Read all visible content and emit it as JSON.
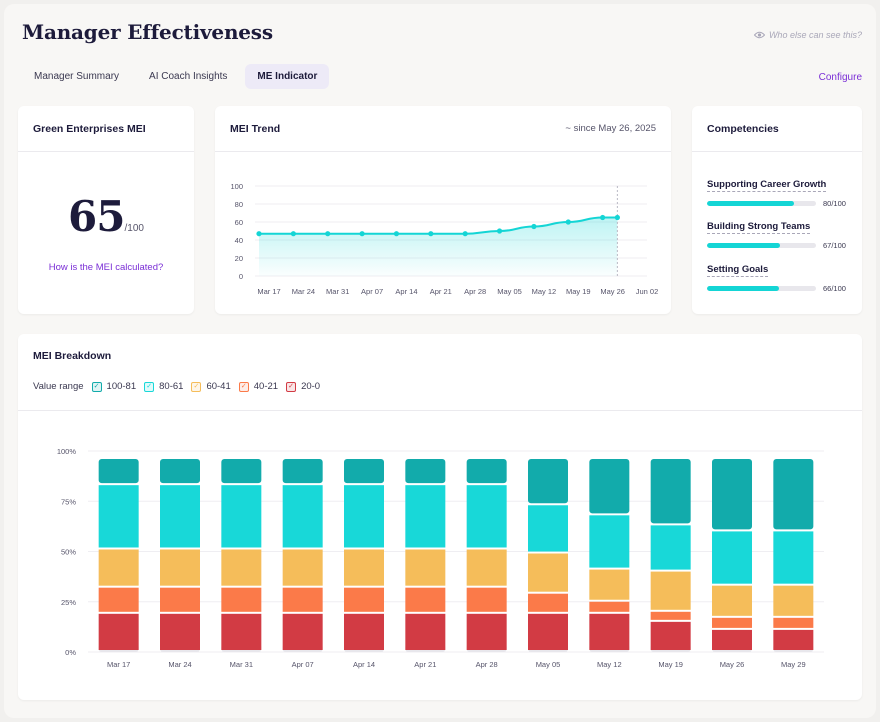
{
  "header": {
    "title": "Manager Effectiveness",
    "visibility_link": "Who else can see this?",
    "configure_label": "Configure"
  },
  "tabs": [
    {
      "label": "Manager Summary",
      "active": false
    },
    {
      "label": "AI Coach Insights",
      "active": false
    },
    {
      "label": "ME Indicator",
      "active": true
    }
  ],
  "mei_card": {
    "title": "Green Enterprises MEI",
    "score": "65",
    "score_denominator": "/100",
    "link_label": "How is the MEI calculated?"
  },
  "trend_card": {
    "title": "MEI Trend",
    "since_label": "~ since May 26, 2025",
    "chart_data": {
      "type": "area",
      "title": "MEI Trend",
      "x_ticks": [
        "Mar 17",
        "Mar 24",
        "Mar 31",
        "Apr 07",
        "Apr 14",
        "Apr 21",
        "Apr 28",
        "May 05",
        "May 12",
        "May 19",
        "May 26",
        "Jun 02"
      ],
      "y_ticks": [
        "100",
        "80",
        "60",
        "40",
        "20",
        "0"
      ],
      "ylim": [
        0,
        100
      ],
      "points": [
        {
          "x": "Mar 17",
          "y": 47
        },
        {
          "x": "Mar 24",
          "y": 47
        },
        {
          "x": "Mar 31",
          "y": 47
        },
        {
          "x": "Apr 07",
          "y": 47
        },
        {
          "x": "Apr 14",
          "y": 47
        },
        {
          "x": "Apr 21",
          "y": 47
        },
        {
          "x": "Apr 28",
          "y": 47
        },
        {
          "x": "May 05",
          "y": 50
        },
        {
          "x": "May 12",
          "y": 55
        },
        {
          "x": "May 19",
          "y": 60
        },
        {
          "x": "May 26",
          "y": 65
        },
        {
          "x": "May 29",
          "y": 65
        }
      ],
      "marker_at": "May 29",
      "color": "#14d5d5"
    }
  },
  "competencies_card": {
    "title": "Competencies",
    "items": [
      {
        "label": "Supporting Career Growth",
        "value": 80,
        "value_label": "80/100"
      },
      {
        "label": "Building Strong Teams",
        "value": 67,
        "value_label": "67/100"
      },
      {
        "label": "Setting Goals",
        "value": 66,
        "value_label": "66/100"
      }
    ]
  },
  "breakdown_card": {
    "title": "MEI Breakdown",
    "legend_title": "Value range",
    "legend": [
      {
        "label": "100-81",
        "color": "#12abab"
      },
      {
        "label": "80-61",
        "color": "#18d8d8"
      },
      {
        "label": "60-41",
        "color": "#f5bd5a"
      },
      {
        "label": "40-21",
        "color": "#fb7a49"
      },
      {
        "label": "20-0",
        "color": "#d23b44"
      }
    ],
    "chart_data": {
      "type": "bar",
      "stacked": true,
      "title": "MEI Breakdown",
      "categories": [
        "Mar 17",
        "Mar 24",
        "Mar 31",
        "Apr 07",
        "Apr 14",
        "Apr 21",
        "Apr 28",
        "May 05",
        "May 12",
        "May 19",
        "May 26",
        "May 29"
      ],
      "y_ticks": [
        "100%",
        "75%",
        "50%",
        "25%",
        "0%"
      ],
      "ylim": [
        0,
        100
      ],
      "series": [
        {
          "name": "20-0",
          "color": "#d23b44",
          "values": [
            19,
            19,
            19,
            19,
            19,
            19,
            19,
            19,
            19,
            15,
            11,
            11
          ]
        },
        {
          "name": "40-21",
          "color": "#fb7a49",
          "values": [
            13,
            13,
            13,
            13,
            13,
            13,
            13,
            10,
            6,
            5,
            6,
            6
          ]
        },
        {
          "name": "60-41",
          "color": "#f5bd5a",
          "values": [
            19,
            19,
            19,
            19,
            19,
            19,
            19,
            20,
            16,
            20,
            16,
            16
          ]
        },
        {
          "name": "80-61",
          "color": "#18d8d8",
          "values": [
            32,
            32,
            32,
            32,
            32,
            32,
            32,
            24,
            27,
            23,
            27,
            27
          ]
        },
        {
          "name": "100-81",
          "color": "#12abab",
          "values": [
            13,
            13,
            13,
            13,
            13,
            13,
            13,
            23,
            28,
            33,
            36,
            36
          ]
        }
      ]
    }
  }
}
